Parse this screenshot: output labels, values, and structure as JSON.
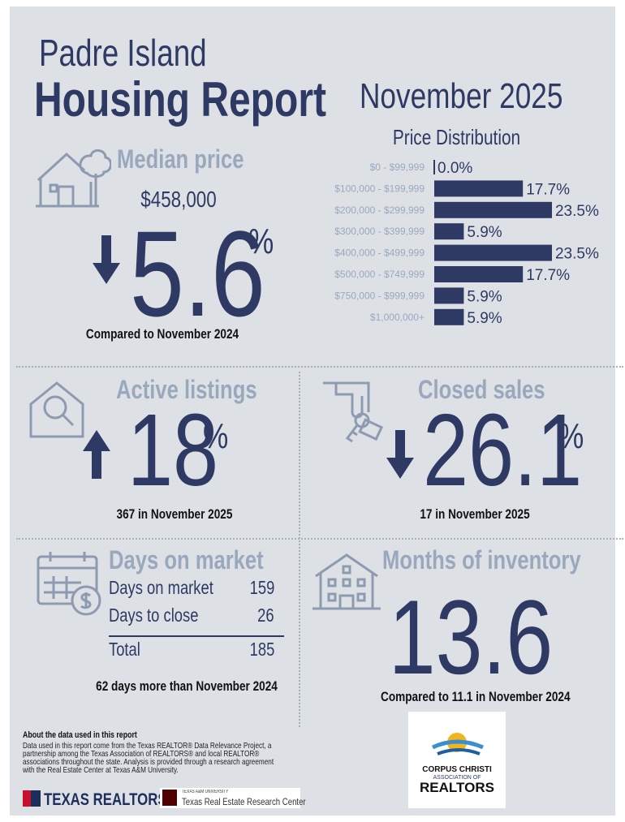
{
  "header": {
    "location": "Padre Island",
    "title": "Housing Report",
    "period": "November 2025"
  },
  "median": {
    "label": "Median price",
    "price": "$458,000",
    "change": "5.6",
    "unit": "%",
    "note": "Compared to November 2024"
  },
  "price_distribution": {
    "title": "Price Distribution",
    "categories": [
      "$0 - $99,999",
      "$100,000 - $199,999",
      "$200,000 - $299,999",
      "$300,000 - $399,999",
      "$400,000 - $499,999",
      "$500,000 - $749,999",
      "$750,000 - $999,999",
      "$1,000,000+"
    ],
    "values": [
      0.0,
      17.7,
      23.5,
      5.9,
      23.5,
      17.7,
      5.9,
      5.9
    ],
    "value_labels": [
      "0.0%",
      "17.7%",
      "23.5%",
      "5.9%",
      "23.5%",
      "17.7%",
      "5.9%",
      "5.9%"
    ],
    "color": "#2e3a63"
  },
  "active": {
    "label": "Active listings",
    "change": "18",
    "unit": "%",
    "note": "367 in November 2025"
  },
  "closed": {
    "label": "Closed sales",
    "change": "26.1",
    "unit": "%",
    "note": "17 in November 2025"
  },
  "days": {
    "label": "Days on market",
    "rows": [
      [
        "Days on market",
        159
      ],
      [
        "Days to close",
        26
      ]
    ],
    "total": [
      "Total",
      185
    ],
    "note": "62 days more than November 2024"
  },
  "inventory": {
    "label": "Months of inventory",
    "value": "13.6",
    "note": "Compared to 11.1 in November 2024"
  },
  "footer": {
    "about_title": "About the data used in this report",
    "about_text": [
      "Data used in this report come from the Texas REALTOR® Data Relevance Project, a",
      "partnership among the Texas Association of REALTORS® and local REALTOR®",
      "associations throughout the state. Analysis is provided through a research agreement",
      "with the Real Estate Center at Texas A&M University."
    ],
    "logo1": "TEXAS REALTORS",
    "logo2_small": "TEXAS A&M UNIVERSITY",
    "logo2": "Texas Real Estate Research Center",
    "logo3": [
      "CORPUS CHRISTI",
      "ASSOCIATION OF",
      "REALTORS"
    ]
  }
}
